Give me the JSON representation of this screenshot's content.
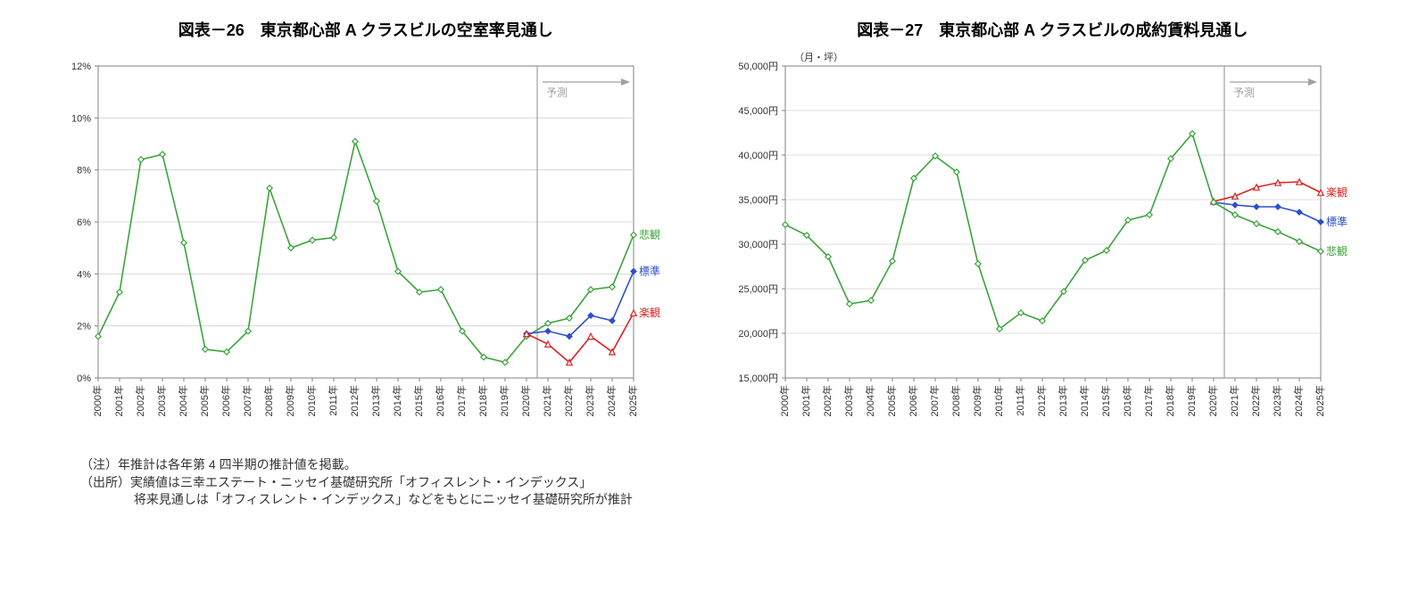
{
  "chart_left": {
    "title": "図表－26　東京都心部 A クラスビルの空室率見通し",
    "type": "line",
    "x_categories": [
      "2000年",
      "2001年",
      "2002年",
      "2003年",
      "2004年",
      "2005年",
      "2006年",
      "2007年",
      "2008年",
      "2009年",
      "2010年",
      "2011年",
      "2012年",
      "2013年",
      "2014年",
      "2015年",
      "2016年",
      "2017年",
      "2018年",
      "2019年",
      "2020年",
      "2021年",
      "2022年",
      "2023年",
      "2024年",
      "2025年"
    ],
    "y_min": 0,
    "y_max": 12,
    "y_step": 2,
    "y_tick_format": "{v}%",
    "forecast_start_index": 21,
    "forecast_label": "予測",
    "plot_bg": "#ffffff",
    "grid_color": "#d0d0d0",
    "axis_color": "#808080",
    "series": [
      {
        "name": "悲観",
        "color": "#3ba43b",
        "marker": "diamond",
        "label_color": "#3ba43b",
        "values": [
          1.6,
          3.3,
          8.4,
          8.6,
          5.2,
          1.1,
          1.0,
          1.8,
          7.3,
          5.0,
          5.3,
          5.4,
          9.1,
          6.8,
          4.1,
          3.3,
          3.4,
          1.8,
          0.8,
          0.6,
          1.6,
          2.1,
          2.3,
          3.4,
          3.5,
          5.5
        ]
      },
      {
        "name": "標準",
        "color": "#2e4fd0",
        "marker": "diamond-filled",
        "label_color": "#2e4fd0",
        "values": [
          null,
          null,
          null,
          null,
          null,
          null,
          null,
          null,
          null,
          null,
          null,
          null,
          null,
          null,
          null,
          null,
          null,
          null,
          null,
          null,
          1.7,
          1.8,
          1.6,
          2.4,
          2.2,
          4.1
        ]
      },
      {
        "name": "楽観",
        "color": "#e02020",
        "marker": "triangle",
        "label_color": "#e02020",
        "values": [
          null,
          null,
          null,
          null,
          null,
          null,
          null,
          null,
          null,
          null,
          null,
          null,
          null,
          null,
          null,
          null,
          null,
          null,
          null,
          null,
          1.7,
          1.3,
          0.6,
          1.6,
          1.0,
          2.5
        ]
      }
    ]
  },
  "chart_right": {
    "title": "図表－27　東京都心部 A クラスビルの成約賃料見通し",
    "type": "line",
    "y_unit": "（月・坪）",
    "x_categories": [
      "2000年",
      "2001年",
      "2002年",
      "2003年",
      "2004年",
      "2005年",
      "2006年",
      "2007年",
      "2008年",
      "2009年",
      "2010年",
      "2011年",
      "2012年",
      "2013年",
      "2014年",
      "2015年",
      "2016年",
      "2017年",
      "2018年",
      "2019年",
      "2020年",
      "2021年",
      "2022年",
      "2023年",
      "2024年",
      "2025年"
    ],
    "y_min": 15000,
    "y_max": 50000,
    "y_step": 5000,
    "y_tick_format": "{v}円",
    "forecast_start_index": 21,
    "forecast_label": "予測",
    "plot_bg": "#ffffff",
    "grid_color": "#d0d0d0",
    "axis_color": "#808080",
    "series": [
      {
        "name": "楽観",
        "color": "#e02020",
        "marker": "triangle",
        "label_color": "#e02020",
        "values": [
          null,
          null,
          null,
          null,
          null,
          null,
          null,
          null,
          null,
          null,
          null,
          null,
          null,
          null,
          null,
          null,
          null,
          null,
          null,
          null,
          34800,
          35400,
          36400,
          36900,
          37000,
          35800
        ]
      },
      {
        "name": "標準",
        "color": "#2e4fd0",
        "marker": "diamond-filled",
        "label_color": "#2e4fd0",
        "values": [
          null,
          null,
          null,
          null,
          null,
          null,
          null,
          null,
          null,
          null,
          null,
          null,
          null,
          null,
          null,
          null,
          null,
          null,
          null,
          null,
          34700,
          34400,
          34200,
          34200,
          33600,
          32500
        ]
      },
      {
        "name": "悲観",
        "color": "#3ba43b",
        "marker": "diamond",
        "label_color": "#3ba43b",
        "values": [
          32200,
          31000,
          28600,
          23300,
          23700,
          28100,
          37400,
          39900,
          38100,
          27800,
          20500,
          22300,
          21400,
          24700,
          28200,
          29300,
          32700,
          33300,
          39600,
          42400,
          34700,
          33300,
          32300,
          31400,
          30300,
          29200
        ]
      }
    ]
  },
  "footnotes": [
    "（注）年推計は各年第 4 四半期の推計値を掲載。",
    "（出所）実績値は三幸エステート・ニッセイ基礎研究所「オフィスレント・インデックス」",
    "　　　　 将来見通しは「オフィスレント・インデックス」などをもとにニッセイ基礎研究所が推計"
  ]
}
